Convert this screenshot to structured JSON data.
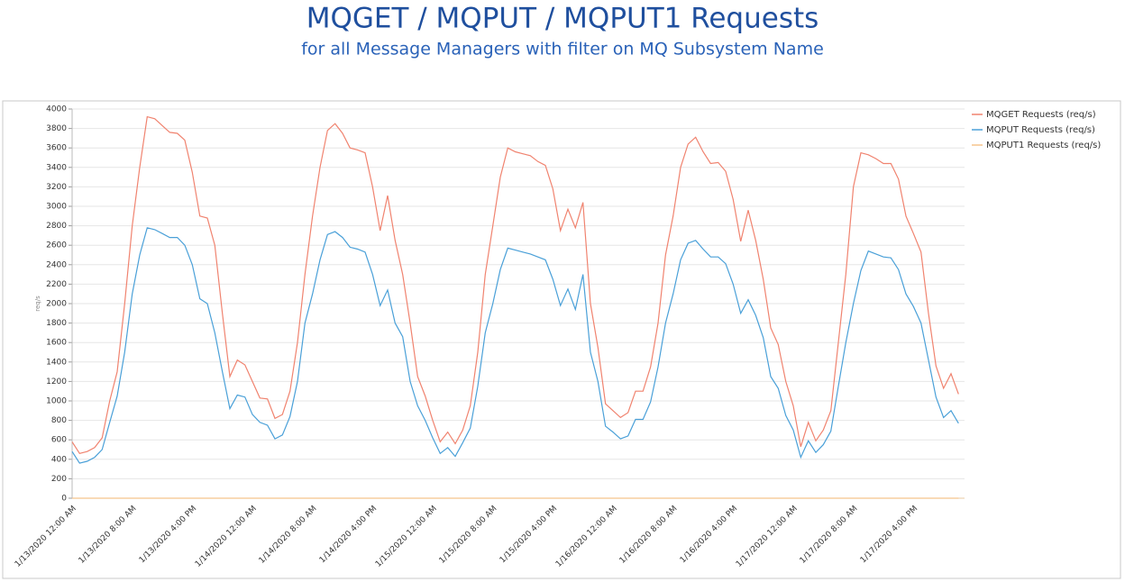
{
  "chart_data": {
    "type": "line",
    "title": "MQGET / MQPUT / MQPUT1 Requests",
    "subtitle": "for all Message Managers with filter on MQ Subsystem Name",
    "ylabel": "req/s",
    "categories": [
      "1/13/2020 12:00 AM",
      null,
      null,
      null,
      null,
      null,
      null,
      null,
      "1/13/2020 8:00 AM",
      null,
      null,
      null,
      null,
      null,
      null,
      null,
      "1/13/2020 4:00 PM",
      null,
      null,
      null,
      null,
      null,
      null,
      null,
      "1/14/2020 12:00 AM",
      null,
      null,
      null,
      null,
      null,
      null,
      null,
      "1/14/2020 8:00 AM",
      null,
      null,
      null,
      null,
      null,
      null,
      null,
      "1/14/2020 4:00 PM",
      null,
      null,
      null,
      null,
      null,
      null,
      null,
      "1/15/2020 12:00 AM",
      null,
      null,
      null,
      null,
      null,
      null,
      null,
      "1/15/2020 8:00 AM",
      null,
      null,
      null,
      null,
      null,
      null,
      null,
      "1/15/2020 4:00 PM",
      null,
      null,
      null,
      null,
      null,
      null,
      null,
      "1/16/2020 12:00 AM",
      null,
      null,
      null,
      null,
      null,
      null,
      null,
      "1/16/2020 8:00 AM",
      null,
      null,
      null,
      null,
      null,
      null,
      null,
      "1/16/2020 4:00 PM",
      null,
      null,
      null,
      null,
      null,
      null,
      null,
      "1/17/2020 12:00 AM",
      null,
      null,
      null,
      null,
      null,
      null,
      null,
      "1/17/2020 8:00 AM",
      null,
      null,
      null,
      null,
      null,
      null,
      null,
      "1/17/2020 4:00 PM",
      null,
      null,
      null,
      null,
      null,
      null
    ],
    "series": [
      {
        "name": "MQGET Requests (req/s)",
        "color": "#f0836f",
        "values": [
          580,
          460,
          480,
          520,
          620,
          1000,
          1300,
          2000,
          2800,
          3400,
          3920,
          3900,
          3830,
          3760,
          3750,
          3680,
          3350,
          2900,
          2880,
          2600,
          1900,
          1250,
          1420,
          1370,
          1200,
          1030,
          1020,
          820,
          860,
          1100,
          1600,
          2300,
          2900,
          3400,
          3780,
          3850,
          3750,
          3600,
          3580,
          3550,
          3200,
          2750,
          3110,
          2650,
          2300,
          1800,
          1250,
          1050,
          800,
          580,
          680,
          560,
          700,
          950,
          1500,
          2300,
          2800,
          3300,
          3600,
          3560,
          3540,
          3520,
          3460,
          3420,
          3180,
          2750,
          2970,
          2780,
          3040,
          2000,
          1550,
          970,
          900,
          830,
          880,
          1100,
          1100,
          1350,
          1800,
          2500,
          2900,
          3400,
          3640,
          3710,
          3560,
          3440,
          3450,
          3360,
          3070,
          2640,
          2960,
          2650,
          2250,
          1750,
          1580,
          1200,
          950,
          530,
          780,
          590,
          700,
          900,
          1600,
          2300,
          3200,
          3550,
          3530,
          3490,
          3440,
          3440,
          3280,
          2900,
          2720,
          2530,
          1900,
          1360,
          1130,
          1280,
          1070
        ]
      },
      {
        "name": "MQPUT Requests (req/s)",
        "color": "#4aa0d8",
        "values": [
          480,
          360,
          380,
          420,
          500,
          780,
          1050,
          1500,
          2100,
          2500,
          2780,
          2760,
          2720,
          2680,
          2680,
          2600,
          2400,
          2050,
          2000,
          1700,
          1300,
          920,
          1060,
          1040,
          860,
          780,
          750,
          610,
          650,
          840,
          1200,
          1800,
          2100,
          2450,
          2710,
          2740,
          2680,
          2580,
          2560,
          2530,
          2300,
          1980,
          2140,
          1800,
          1660,
          1200,
          950,
          800,
          620,
          460,
          520,
          430,
          570,
          720,
          1150,
          1700,
          2000,
          2350,
          2570,
          2550,
          2530,
          2510,
          2480,
          2450,
          2250,
          1980,
          2150,
          1940,
          2300,
          1500,
          1200,
          740,
          680,
          610,
          640,
          810,
          810,
          990,
          1350,
          1800,
          2100,
          2450,
          2620,
          2650,
          2560,
          2480,
          2480,
          2410,
          2200,
          1900,
          2040,
          1880,
          1650,
          1250,
          1130,
          850,
          700,
          420,
          590,
          470,
          550,
          690,
          1150,
          1600,
          2000,
          2340,
          2540,
          2510,
          2480,
          2470,
          2350,
          2100,
          1970,
          1800,
          1420,
          1040,
          830,
          900,
          770
        ]
      },
      {
        "name": "MQPUT1 Requests (req/s)",
        "color": "#f5c48c",
        "values": [
          0,
          0,
          0,
          0,
          0,
          0,
          0,
          0,
          0,
          0,
          0,
          0,
          0,
          0,
          0,
          0,
          0,
          0,
          0,
          0,
          0,
          0,
          0,
          0,
          0,
          0,
          0,
          0,
          0,
          0,
          0,
          0,
          0,
          0,
          0,
          0,
          0,
          0,
          0,
          0,
          0,
          0,
          0,
          0,
          0,
          0,
          0,
          0,
          0,
          0,
          0,
          0,
          0,
          0,
          0,
          0,
          0,
          0,
          0,
          0,
          0,
          0,
          0,
          0,
          0,
          0,
          0,
          0,
          0,
          0,
          0,
          0,
          0,
          0,
          0,
          0,
          0,
          0,
          0,
          0,
          0,
          0,
          0,
          0,
          0,
          0,
          0,
          0,
          0,
          0,
          0,
          0,
          0,
          0,
          0,
          0,
          0,
          0,
          0,
          0,
          0,
          0,
          0,
          0,
          0,
          0,
          0,
          0,
          0,
          0,
          0,
          0,
          0,
          0,
          0,
          0,
          0,
          0,
          0
        ]
      }
    ],
    "ylim": [
      0,
      4000
    ],
    "yticks": [
      0,
      200,
      400,
      600,
      800,
      1000,
      1200,
      1400,
      1600,
      1800,
      2000,
      2200,
      2400,
      2600,
      2800,
      3000,
      3200,
      3400,
      3600,
      3800,
      4000
    ],
    "grid": true,
    "legend": "right"
  }
}
